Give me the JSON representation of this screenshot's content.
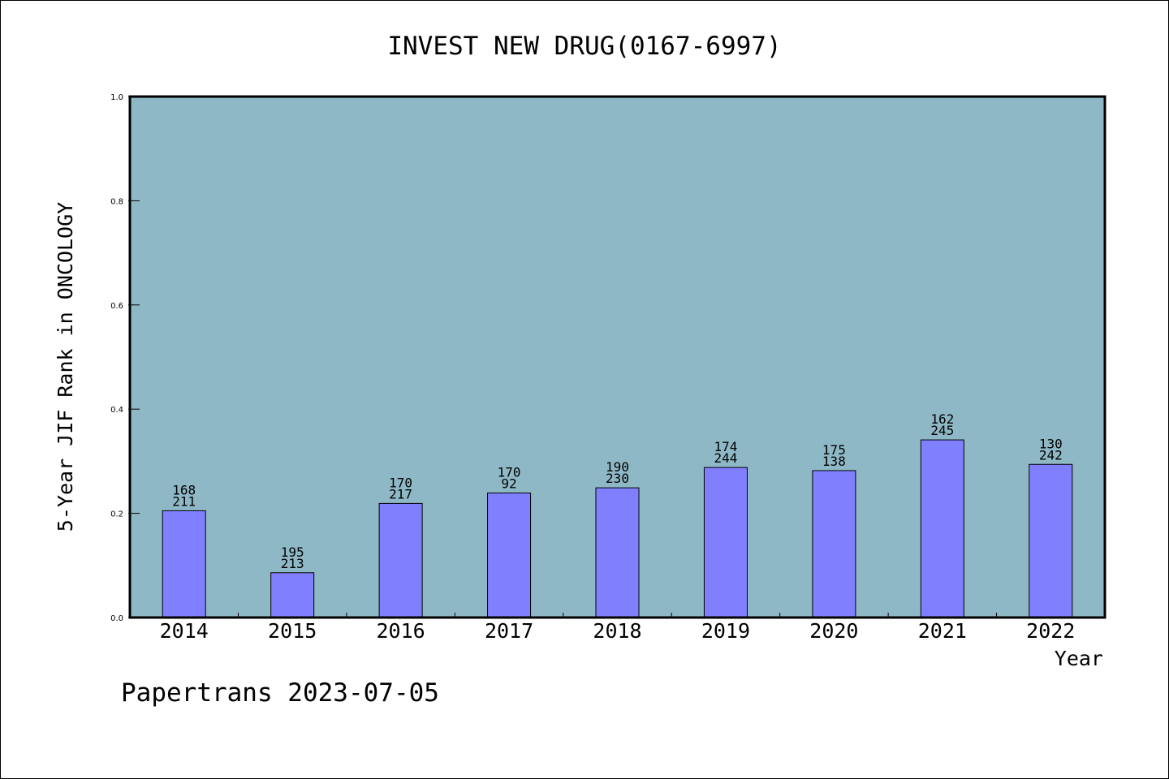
{
  "chart_data": {
    "type": "bar",
    "title": "INVEST NEW DRUG(0167-6997)",
    "xlabel": "Year",
    "ylabel": "5-Year JIF Rank in ONCOLOGY",
    "footer": "Papertrans 2023-07-05",
    "categories": [
      "2014",
      "2015",
      "2016",
      "2017",
      "2018",
      "2019",
      "2020",
      "2021",
      "2022"
    ],
    "values": [
      0.205,
      0.086,
      0.219,
      0.239,
      0.249,
      0.288,
      0.282,
      0.341,
      0.294
    ],
    "labels_top": [
      "168",
      "195",
      "170",
      "170",
      "190",
      "174",
      "175",
      "162",
      "130"
    ],
    "labels_bottom": [
      "211",
      "213",
      "217",
      "92",
      "230",
      "244",
      "138",
      "245",
      "242"
    ],
    "ylim": [
      0,
      1.0
    ],
    "yticks": [
      "0.0",
      "0.2",
      "0.4",
      "0.6",
      "0.8",
      "1.0"
    ],
    "grid": false,
    "colors": {
      "plot_background": "#8fb8c6",
      "bar_fill": "#8080ff",
      "bar_stroke": "#000000",
      "axis": "#000000"
    }
  }
}
